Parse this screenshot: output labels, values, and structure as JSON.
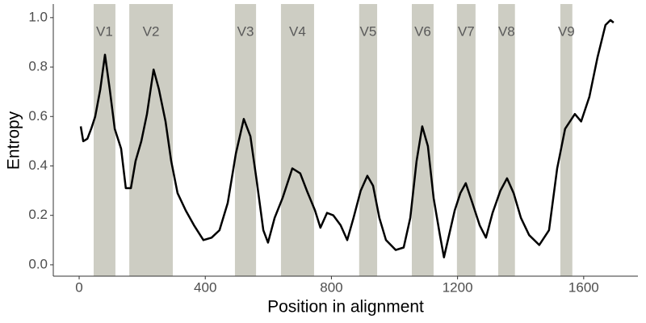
{
  "chart_data": {
    "type": "line",
    "xlabel": "Position in alignment",
    "ylabel": "Entropy",
    "xlim": [
      -82,
      1772
    ],
    "ylim": [
      -0.046,
      1.055
    ],
    "xticks": [
      0,
      400,
      800,
      1200,
      1600
    ],
    "yticks": [
      {
        "value": 0,
        "label": "0.0"
      },
      0.2,
      0.4,
      0.6,
      0.8,
      {
        "value": 1,
        "label": "1.0"
      }
    ],
    "region_color": "#cdcdc3",
    "region_label_y": 0.94,
    "regions": [
      {
        "label": "V1",
        "start": 46,
        "end": 115
      },
      {
        "label": "V2",
        "start": 159,
        "end": 297
      },
      {
        "label": "V3",
        "start": 494,
        "end": 561
      },
      {
        "label": "V4",
        "start": 640,
        "end": 745
      },
      {
        "label": "V5",
        "start": 888,
        "end": 945
      },
      {
        "label": "V6",
        "start": 1055,
        "end": 1124
      },
      {
        "label": "V7",
        "start": 1198,
        "end": 1257
      },
      {
        "label": "V8",
        "start": 1329,
        "end": 1382
      },
      {
        "label": "V9",
        "start": 1526,
        "end": 1564
      }
    ],
    "series": [
      {
        "color": "#000000",
        "x": [
          5,
          13,
          26,
          38,
          51,
          67,
          82,
          97,
          113,
          133,
          148,
          164,
          179,
          197,
          215,
          236,
          253,
          274,
          292,
          312,
          338,
          364,
          394,
          420,
          445,
          471,
          497,
          522,
          543,
          563,
          584,
          599,
          620,
          645,
          676,
          701,
          722,
          748,
          765,
          786,
          806,
          829,
          850,
          870,
          893,
          914,
          932,
          952,
          973,
          1004,
          1029,
          1050,
          1070,
          1088,
          1106,
          1124,
          1144,
          1157,
          1173,
          1191,
          1209,
          1226,
          1247,
          1270,
          1290,
          1311,
          1336,
          1357,
          1378,
          1401,
          1427,
          1459,
          1490,
          1516,
          1541,
          1572,
          1592,
          1618,
          1644,
          1669,
          1685,
          1695
        ],
        "values": [
          0.56,
          0.5,
          0.51,
          0.55,
          0.6,
          0.71,
          0.85,
          0.71,
          0.55,
          0.47,
          0.31,
          0.31,
          0.42,
          0.5,
          0.61,
          0.79,
          0.71,
          0.58,
          0.42,
          0.29,
          0.22,
          0.16,
          0.1,
          0.11,
          0.14,
          0.25,
          0.45,
          0.59,
          0.52,
          0.34,
          0.14,
          0.09,
          0.19,
          0.27,
          0.39,
          0.37,
          0.3,
          0.22,
          0.15,
          0.21,
          0.2,
          0.16,
          0.1,
          0.19,
          0.3,
          0.36,
          0.32,
          0.19,
          0.1,
          0.06,
          0.07,
          0.19,
          0.42,
          0.56,
          0.48,
          0.27,
          0.12,
          0.03,
          0.12,
          0.22,
          0.29,
          0.33,
          0.25,
          0.16,
          0.11,
          0.21,
          0.3,
          0.35,
          0.29,
          0.19,
          0.12,
          0.08,
          0.14,
          0.39,
          0.55,
          0.61,
          0.58,
          0.68,
          0.84,
          0.97,
          0.99,
          0.98
        ]
      }
    ]
  }
}
